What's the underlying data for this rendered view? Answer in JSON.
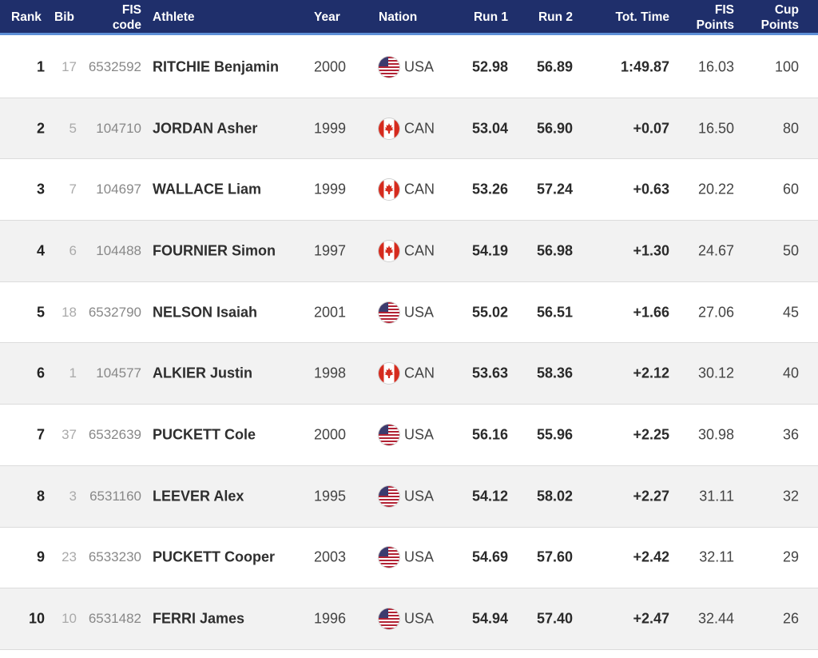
{
  "header": {
    "rank": "Rank",
    "bib": "Bib",
    "fis_code_1": "FIS",
    "fis_code_2": "code",
    "athlete": "Athlete",
    "year": "Year",
    "nation": "Nation",
    "run1": "Run 1",
    "run2": "Run 2",
    "tot_time": "Tot. Time",
    "fis_points_1": "FIS",
    "fis_points_2": "Points",
    "cup_points_1": "Cup",
    "cup_points_2": "Points"
  },
  "rows": [
    {
      "rank": "1",
      "bib": "17",
      "fis_code": "6532592",
      "athlete": "RITCHIE Benjamin",
      "year": "2000",
      "nation": "USA",
      "flag": "usa-flag-icon",
      "run1": "52.98",
      "run2": "56.89",
      "tot_time": "1:49.87",
      "fis_points": "16.03",
      "cup_points": "100"
    },
    {
      "rank": "2",
      "bib": "5",
      "fis_code": "104710",
      "athlete": "JORDAN Asher",
      "year": "1999",
      "nation": "CAN",
      "flag": "canada-flag-icon",
      "run1": "53.04",
      "run2": "56.90",
      "tot_time": "+0.07",
      "fis_points": "16.50",
      "cup_points": "80"
    },
    {
      "rank": "3",
      "bib": "7",
      "fis_code": "104697",
      "athlete": "WALLACE Liam",
      "year": "1999",
      "nation": "CAN",
      "flag": "canada-flag-icon",
      "run1": "53.26",
      "run2": "57.24",
      "tot_time": "+0.63",
      "fis_points": "20.22",
      "cup_points": "60"
    },
    {
      "rank": "4",
      "bib": "6",
      "fis_code": "104488",
      "athlete": "FOURNIER Simon",
      "year": "1997",
      "nation": "CAN",
      "flag": "canada-flag-icon",
      "run1": "54.19",
      "run2": "56.98",
      "tot_time": "+1.30",
      "fis_points": "24.67",
      "cup_points": "50"
    },
    {
      "rank": "5",
      "bib": "18",
      "fis_code": "6532790",
      "athlete": "NELSON Isaiah",
      "year": "2001",
      "nation": "USA",
      "flag": "usa-flag-icon",
      "run1": "55.02",
      "run2": "56.51",
      "tot_time": "+1.66",
      "fis_points": "27.06",
      "cup_points": "45"
    },
    {
      "rank": "6",
      "bib": "1",
      "fis_code": "104577",
      "athlete": "ALKIER Justin",
      "year": "1998",
      "nation": "CAN",
      "flag": "canada-flag-icon",
      "run1": "53.63",
      "run2": "58.36",
      "tot_time": "+2.12",
      "fis_points": "30.12",
      "cup_points": "40"
    },
    {
      "rank": "7",
      "bib": "37",
      "fis_code": "6532639",
      "athlete": "PUCKETT Cole",
      "year": "2000",
      "nation": "USA",
      "flag": "usa-flag-icon",
      "run1": "56.16",
      "run2": "55.96",
      "tot_time": "+2.25",
      "fis_points": "30.98",
      "cup_points": "36"
    },
    {
      "rank": "8",
      "bib": "3",
      "fis_code": "6531160",
      "athlete": "LEEVER Alex",
      "year": "1995",
      "nation": "USA",
      "flag": "usa-flag-icon",
      "run1": "54.12",
      "run2": "58.02",
      "tot_time": "+2.27",
      "fis_points": "31.11",
      "cup_points": "32"
    },
    {
      "rank": "9",
      "bib": "23",
      "fis_code": "6533230",
      "athlete": "PUCKETT Cooper",
      "year": "2003",
      "nation": "USA",
      "flag": "usa-flag-icon",
      "run1": "54.69",
      "run2": "57.60",
      "tot_time": "+2.42",
      "fis_points": "32.11",
      "cup_points": "29"
    },
    {
      "rank": "10",
      "bib": "10",
      "fis_code": "6531482",
      "athlete": "FERRI James",
      "year": "1996",
      "nation": "USA",
      "flag": "usa-flag-icon",
      "run1": "54.94",
      "run2": "57.40",
      "tot_time": "+2.47",
      "fis_points": "32.44",
      "cup_points": "26"
    }
  ],
  "colors": {
    "header_bg": "#1f2f6b",
    "header_accent": "#5d8fd6",
    "row_alt": "#f2f2f2"
  }
}
